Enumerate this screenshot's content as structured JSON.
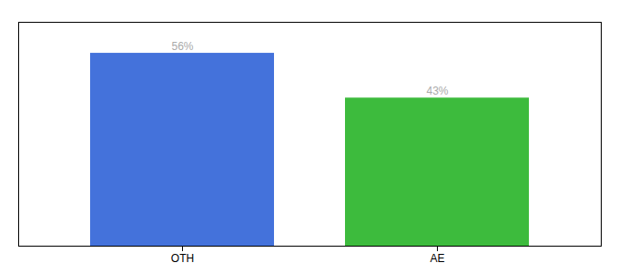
{
  "chart_data": {
    "type": "bar",
    "categories": [
      "OTH",
      "AE"
    ],
    "values": [
      56,
      43
    ],
    "value_labels": [
      "56%",
      "43%"
    ],
    "colors": [
      "#4472db",
      "#3dbb3d"
    ],
    "ylim": [
      0,
      65
    ],
    "yticks": [],
    "data_labels": true,
    "tick_labels": "x"
  }
}
